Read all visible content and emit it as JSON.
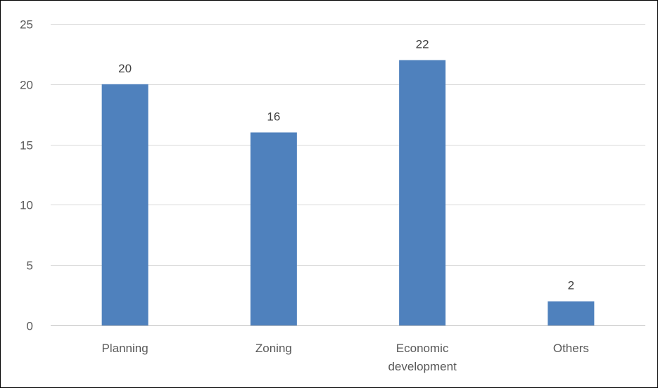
{
  "chart_data": {
    "type": "bar",
    "title": "",
    "xlabel": "",
    "ylabel": "",
    "categories": [
      "Planning",
      "Zoning",
      "Economic development",
      "Others"
    ],
    "category_lines": [
      [
        "Planning"
      ],
      [
        "Zoning"
      ],
      [
        "Economic",
        "development"
      ],
      [
        "Others"
      ]
    ],
    "values": [
      20,
      16,
      22,
      2
    ],
    "data_labels": [
      "20",
      "16",
      "22",
      "2"
    ],
    "ylim": [
      0,
      25
    ],
    "yticks": [
      0,
      5,
      10,
      15,
      20,
      25
    ],
    "grid": true,
    "legend": "none",
    "colors": {
      "bar": "#4f81bd",
      "grid": "#d9d9d9",
      "axis": "#bfbfbf",
      "tick_text": "#595959",
      "label_text": "#404040"
    }
  }
}
